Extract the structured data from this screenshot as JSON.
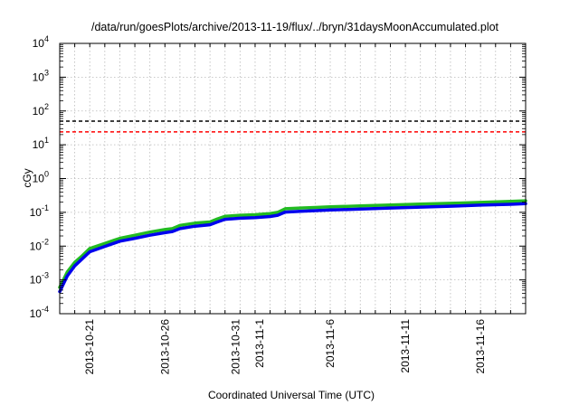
{
  "chart_data": {
    "type": "line",
    "title": "/data/run/goesPlots/archive/2013-11-19/flux/../bryn/31daysMoonAccumulated.plot",
    "xlabel": "Coordinated Universal Time (UTC)",
    "ylabel": "cGy",
    "yscale": "log",
    "ylim": [
      0.0001,
      10000
    ],
    "xlim": [
      "2013-10-19",
      "2013-11-19"
    ],
    "grid": true,
    "y_ticks": [
      {
        "value": 0.0001,
        "base": "10",
        "exp": "-4"
      },
      {
        "value": 0.001,
        "base": "10",
        "exp": "-3"
      },
      {
        "value": 0.01,
        "base": "10",
        "exp": "-2"
      },
      {
        "value": 0.1,
        "base": "10",
        "exp": "-1"
      },
      {
        "value": 1,
        "base": "10",
        "exp": "0"
      },
      {
        "value": 10,
        "base": "10",
        "exp": "1"
      },
      {
        "value": 100,
        "base": "10",
        "exp": "2"
      },
      {
        "value": 1000,
        "base": "10",
        "exp": "3"
      },
      {
        "value": 10000,
        "base": "10",
        "exp": "4"
      }
    ],
    "x_ticks": [
      {
        "date": "2013-10-21",
        "label": "2013-10-21"
      },
      {
        "date": "2013-10-26",
        "label": "2013-10-26"
      },
      {
        "date": "2013-10-31",
        "label": "2013-10-31"
      },
      {
        "date": "2013-11-01",
        "label": "2013-11-1"
      },
      {
        "date": "2013-11-06",
        "label": "2013-11-6"
      },
      {
        "date": "2013-11-11",
        "label": "2013-11-11"
      },
      {
        "date": "2013-11-16",
        "label": "2013-11-16"
      }
    ],
    "hlines": [
      {
        "value": 50,
        "color": "#000000",
        "style": "dashed"
      },
      {
        "value": 24,
        "color": "#ff0000",
        "style": "dashed"
      }
    ],
    "series": [
      {
        "color": "#22bb22",
        "x": [
          "2013-10-19",
          "2013-10-19T12:00",
          "2013-10-20",
          "2013-10-20T12:00",
          "2013-10-21",
          "2013-10-22",
          "2013-10-23",
          "2013-10-24",
          "2013-10-25",
          "2013-10-26",
          "2013-10-26T12:00",
          "2013-10-27",
          "2013-10-28",
          "2013-10-29",
          "2013-10-29T12:00",
          "2013-10-30",
          "2013-10-31",
          "2013-11-01",
          "2013-11-02",
          "2013-11-02T12:00",
          "2013-11-03",
          "2013-11-04",
          "2013-11-05",
          "2013-11-06",
          "2013-11-08",
          "2013-11-10",
          "2013-11-12",
          "2013-11-14",
          "2013-11-16",
          "2013-11-18",
          "2013-11-19"
        ],
        "y": [
          0.0006,
          0.0017,
          0.0033,
          0.0052,
          0.0085,
          0.012,
          0.017,
          0.021,
          0.026,
          0.031,
          0.033,
          0.041,
          0.048,
          0.052,
          0.064,
          0.076,
          0.082,
          0.085,
          0.092,
          0.1,
          0.128,
          0.134,
          0.139,
          0.145,
          0.155,
          0.165,
          0.175,
          0.185,
          0.197,
          0.21,
          0.22
        ]
      },
      {
        "color": "#0000ee",
        "x": [
          "2013-10-19",
          "2013-10-19T12:00",
          "2013-10-20",
          "2013-10-20T12:00",
          "2013-10-21",
          "2013-10-22",
          "2013-10-23",
          "2013-10-24",
          "2013-10-25",
          "2013-10-26",
          "2013-10-26T12:00",
          "2013-10-27",
          "2013-10-28",
          "2013-10-29",
          "2013-10-29T12:00",
          "2013-10-30",
          "2013-10-31",
          "2013-11-01",
          "2013-11-02",
          "2013-11-02T12:00",
          "2013-11-03",
          "2013-11-04",
          "2013-11-05",
          "2013-11-06",
          "2013-11-08",
          "2013-11-10",
          "2013-11-12",
          "2013-11-14",
          "2013-11-16",
          "2013-11-18",
          "2013-11-19"
        ],
        "y": [
          0.00045,
          0.0013,
          0.0026,
          0.0042,
          0.0068,
          0.0098,
          0.014,
          0.017,
          0.021,
          0.025,
          0.027,
          0.033,
          0.039,
          0.043,
          0.052,
          0.062,
          0.067,
          0.07,
          0.075,
          0.082,
          0.102,
          0.107,
          0.112,
          0.117,
          0.125,
          0.134,
          0.143,
          0.152,
          0.163,
          0.173,
          0.18
        ]
      }
    ]
  }
}
